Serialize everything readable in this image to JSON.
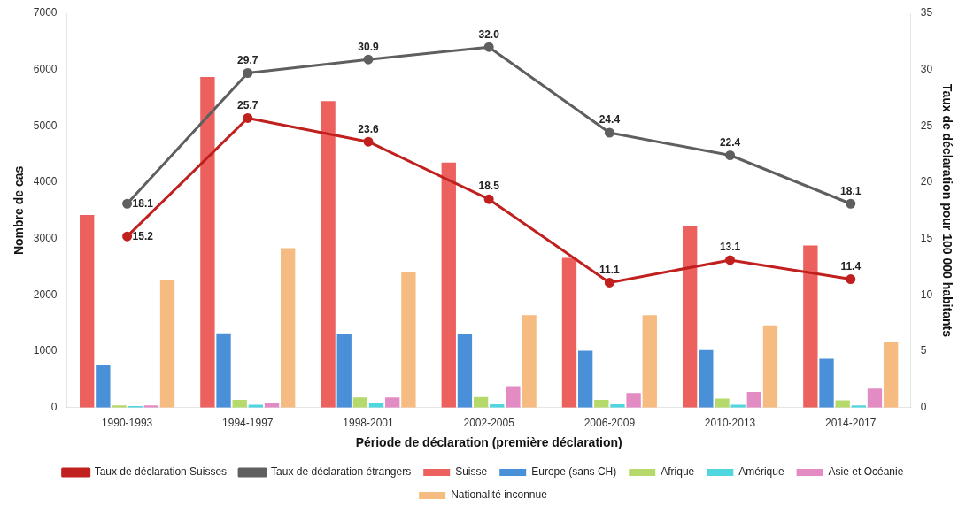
{
  "chart_data": {
    "type": "bar",
    "xlabel": "Période de déclaration (première déclaration)",
    "ylabel": "Nombre de cas",
    "y2label": "Taux de déclaration pour 100 000 habitants",
    "categories": [
      "1990-1993",
      "1994-1997",
      "1998-2001",
      "2002-2005",
      "2006-2009",
      "2010-2013",
      "2014-2017"
    ],
    "series": [
      {
        "name": "Suisse",
        "color": "#ec605e",
        "values": [
          3420,
          5870,
          5440,
          4350,
          2660,
          3230,
          2880
        ]
      },
      {
        "name": "Europe (sans CH)",
        "color": "#4a90d9",
        "values": [
          750,
          1320,
          1300,
          1300,
          1010,
          1020,
          870
        ]
      },
      {
        "name": "Afrique",
        "color": "#b5d96a",
        "values": [
          40,
          140,
          180,
          190,
          140,
          160,
          130
        ]
      },
      {
        "name": "Amérique",
        "color": "#4fd6df",
        "values": [
          30,
          50,
          80,
          60,
          60,
          50,
          40
        ]
      },
      {
        "name": "Asie et Océanie",
        "color": "#e38cc4",
        "values": [
          40,
          90,
          180,
          380,
          260,
          280,
          340
        ]
      },
      {
        "name": "Nationalité inconnue",
        "color": "#f6bb80",
        "values": [
          2270,
          2830,
          2410,
          1640,
          1640,
          1460,
          1160
        ]
      },
      {
        "name": "Taux de déclaration Suisses",
        "type": "line",
        "axis": "y2",
        "color": "#c0201e",
        "values": [
          15.2,
          25.7,
          23.6,
          18.5,
          11.1,
          13.1,
          11.4
        ],
        "value_labels": [
          "15.2",
          "25.7",
          "23.6",
          "18.5",
          "11.1",
          "13.1",
          "11.4"
        ]
      },
      {
        "name": "Taux de déclaration étrangers",
        "type": "line",
        "axis": "y2",
        "color": "#5f5f5f",
        "values": [
          18.1,
          29.7,
          30.9,
          32.0,
          24.4,
          22.4,
          18.1
        ],
        "value_labels": [
          "18.1",
          "29.7",
          "30.9",
          "32.0",
          "24.4",
          "22.4",
          "18.1"
        ]
      }
    ],
    "ylim": [
      0,
      7000
    ],
    "yticks": [
      0,
      1000,
      2000,
      3000,
      4000,
      5000,
      6000,
      7000
    ],
    "y2lim": [
      0,
      35
    ],
    "y2ticks": [
      0,
      5,
      10,
      15,
      20,
      25,
      30,
      35
    ],
    "grid": false,
    "legend": "bottom",
    "marker": "circle"
  }
}
